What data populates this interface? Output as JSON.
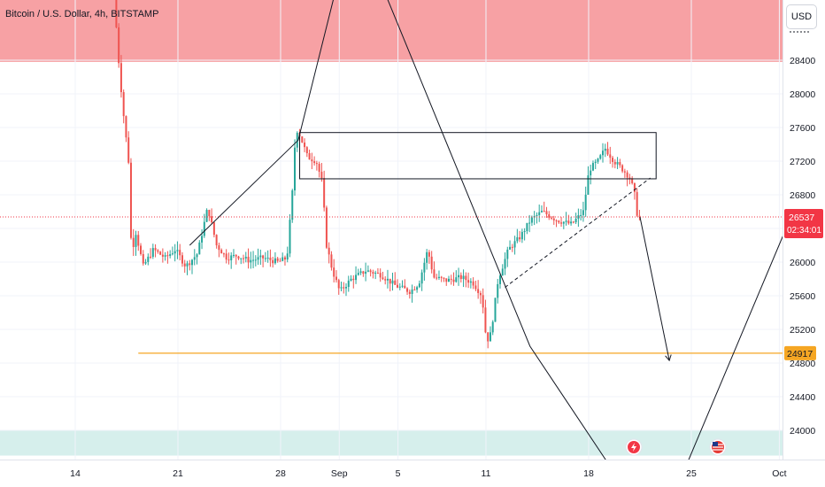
{
  "header": {
    "title": "Bitcoin / U.S. Dollar, 4h, BITSTAMP"
  },
  "price_axis": {
    "currency_button": "USD",
    "current_price_label": "26537",
    "countdown_label": "02:34:01",
    "level_label": "24917"
  },
  "colors": {
    "up": "#26a69a",
    "down": "#ef5350",
    "resistance_zone": "#f7a1a4",
    "support_zone": "#d6efec",
    "level_line": "#f5a623",
    "current_price": "#f23645",
    "drawing": "#131722"
  },
  "icons": {
    "event_1": "lightning-icon",
    "event_2": "us-flag-icon"
  },
  "chart_data": {
    "type": "candlestick",
    "title": "Bitcoin / U.S. Dollar, 4h, BITSTAMP",
    "x_ticks": [
      {
        "label": "14",
        "day": 14
      },
      {
        "label": "21",
        "day": 21
      },
      {
        "label": "28",
        "day": 28
      },
      {
        "label": "Sep",
        "day": 32
      },
      {
        "label": "5",
        "day": 36
      },
      {
        "label": "11",
        "day": 42
      },
      {
        "label": "18",
        "day": 49
      },
      {
        "label": "25",
        "day": 56
      },
      {
        "label": "Oct",
        "day": 62
      }
    ],
    "y_ticks": [
      24000,
      24400,
      24800,
      25200,
      25600,
      26000,
      26400,
      26800,
      27200,
      27600,
      28000,
      28400
    ],
    "ylim": [
      23700,
      29700
    ],
    "current_price": 26537,
    "level_price": 24917,
    "zones": [
      {
        "name": "resistance",
        "from": 28380,
        "to": 29700
      },
      {
        "name": "support",
        "from": 23700,
        "to": 24000
      }
    ],
    "path": [
      {
        "day": 16.8,
        "price": 29500
      },
      {
        "day": 17.0,
        "price": 28650
      },
      {
        "day": 17.4,
        "price": 27850
      },
      {
        "day": 17.8,
        "price": 27200
      },
      {
        "day": 18.0,
        "price": 26100
      },
      {
        "day": 18.3,
        "price": 26350
      },
      {
        "day": 18.8,
        "price": 25950
      },
      {
        "day": 19.5,
        "price": 26150
      },
      {
        "day": 20.3,
        "price": 26050
      },
      {
        "day": 21.0,
        "price": 26150
      },
      {
        "day": 21.7,
        "price": 25950
      },
      {
        "day": 22.5,
        "price": 26100
      },
      {
        "day": 23.2,
        "price": 26650
      },
      {
        "day": 23.8,
        "price": 26200
      },
      {
        "day": 24.5,
        "price": 26050
      },
      {
        "day": 25.2,
        "price": 26080
      },
      {
        "day": 26.0,
        "price": 26020
      },
      {
        "day": 27.0,
        "price": 26050
      },
      {
        "day": 28.0,
        "price": 26000
      },
      {
        "day": 28.6,
        "price": 26050
      },
      {
        "day": 29.0,
        "price": 26900
      },
      {
        "day": 29.2,
        "price": 27600
      },
      {
        "day": 29.5,
        "price": 27500
      },
      {
        "day": 30.0,
        "price": 27250
      },
      {
        "day": 30.6,
        "price": 27200
      },
      {
        "day": 31.0,
        "price": 26950
      },
      {
        "day": 31.3,
        "price": 26200
      },
      {
        "day": 31.7,
        "price": 25900
      },
      {
        "day": 32.2,
        "price": 25650
      },
      {
        "day": 33.0,
        "price": 25800
      },
      {
        "day": 34.0,
        "price": 25900
      },
      {
        "day": 35.0,
        "price": 25850
      },
      {
        "day": 36.0,
        "price": 25720
      },
      {
        "day": 37.0,
        "price": 25650
      },
      {
        "day": 37.6,
        "price": 25750
      },
      {
        "day": 38.2,
        "price": 26150
      },
      {
        "day": 38.6,
        "price": 25820
      },
      {
        "day": 39.5,
        "price": 25780
      },
      {
        "day": 40.5,
        "price": 25820
      },
      {
        "day": 41.3,
        "price": 25750
      },
      {
        "day": 41.9,
        "price": 25600
      },
      {
        "day": 42.2,
        "price": 25050
      },
      {
        "day": 42.5,
        "price": 25150
      },
      {
        "day": 43.0,
        "price": 25800
      },
      {
        "day": 43.7,
        "price": 26150
      },
      {
        "day": 44.5,
        "price": 26300
      },
      {
        "day": 45.2,
        "price": 26500
      },
      {
        "day": 46.0,
        "price": 26600
      },
      {
        "day": 47.0,
        "price": 26500
      },
      {
        "day": 48.0,
        "price": 26450
      },
      {
        "day": 48.8,
        "price": 26600
      },
      {
        "day": 49.2,
        "price": 27100
      },
      {
        "day": 49.8,
        "price": 27200
      },
      {
        "day": 50.3,
        "price": 27350
      },
      {
        "day": 50.9,
        "price": 27200
      },
      {
        "day": 51.5,
        "price": 27100
      },
      {
        "day": 52.0,
        "price": 27000
      },
      {
        "day": 52.3,
        "price": 26800
      },
      {
        "day": 52.5,
        "price": 26537
      }
    ],
    "annotations": {
      "rectangle": {
        "day_from": 29.3,
        "day_to": 53.6,
        "price_from": 26990,
        "price_to": 27540
      },
      "dashed_trendline": [
        {
          "day": 43.3,
          "price": 25700
        },
        {
          "day": 53.2,
          "price": 27000
        }
      ],
      "zigzag_line": [
        {
          "day": 21.8,
          "price": 26200
        },
        {
          "day": 29.2,
          "price": 27450
        },
        {
          "day": 33.0,
          "price": 30100
        },
        {
          "day": 45.0,
          "price": 25000
        },
        {
          "day": 51.5,
          "price": 23300
        }
      ],
      "v_line": [
        {
          "day": 55.7,
          "price": 23600
        },
        {
          "day": 63.3,
          "price": 26750
        }
      ],
      "projection_arrow": [
        {
          "day": 52.5,
          "price": 26537
        },
        {
          "day": 54.5,
          "price": 24830
        }
      ]
    }
  }
}
